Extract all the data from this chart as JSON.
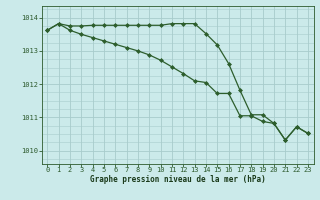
{
  "title": "Graphe pression niveau de la mer (hPa)",
  "bg_color": "#cbeaea",
  "plot_bg_color": "#cbeaea",
  "grid_color": "#a8cccc",
  "line_color": "#2d5e2d",
  "marker_color": "#2d5e2d",
  "xlim": [
    -0.5,
    23.5
  ],
  "ylim": [
    1009.6,
    1014.35
  ],
  "yticks": [
    1010,
    1011,
    1012,
    1013,
    1014
  ],
  "xticks": [
    0,
    1,
    2,
    3,
    4,
    5,
    6,
    7,
    8,
    9,
    10,
    11,
    12,
    13,
    14,
    15,
    16,
    17,
    18,
    19,
    20,
    21,
    22,
    23
  ],
  "series1": [
    1013.62,
    1013.82,
    1013.75,
    1013.75,
    1013.77,
    1013.77,
    1013.77,
    1013.77,
    1013.77,
    1013.77,
    1013.77,
    1013.82,
    1013.82,
    1013.82,
    1013.52,
    1013.18,
    1012.62,
    1011.82,
    1011.08,
    1011.08,
    1010.82,
    1010.32,
    1010.72,
    1010.52
  ],
  "series2": [
    1013.62,
    1013.82,
    1013.62,
    1013.5,
    1013.4,
    1013.3,
    1013.2,
    1013.1,
    1013.0,
    1012.88,
    1012.72,
    1012.52,
    1012.32,
    1012.1,
    1012.05,
    1011.72,
    1011.72,
    1011.05,
    1011.05,
    1010.88,
    1010.82,
    1010.32,
    1010.72,
    1010.52
  ]
}
